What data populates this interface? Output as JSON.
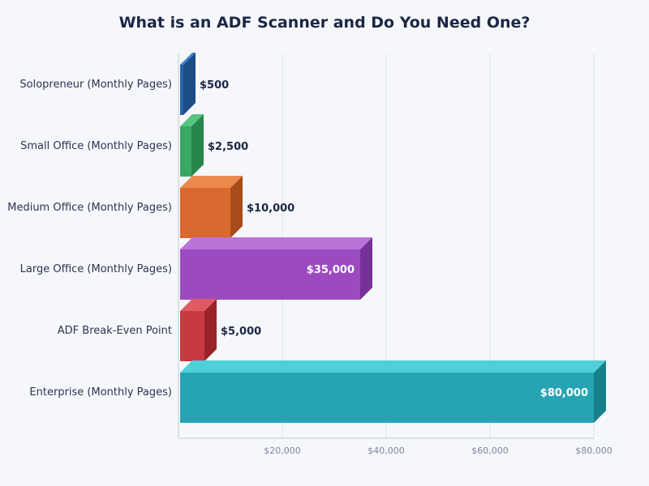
{
  "chart_data": {
    "type": "bar",
    "orientation": "horizontal",
    "title": "What is an ADF Scanner and Do You Need One?",
    "xlabel": "",
    "ylabel": "",
    "categories": [
      "Solopreneur (Monthly Pages)",
      "Small Office (Monthly Pages)",
      "Medium Office (Monthly Pages)",
      "Large Office (Monthly Pages)",
      "ADF Break-Even Point",
      "Enterprise (Monthly Pages)"
    ],
    "values": [
      500,
      2500,
      10000,
      35000,
      5000,
      80000
    ],
    "data_labels": [
      "$500",
      "$2,500",
      "$10,000",
      "$35,000",
      "$5,000",
      "$80,000"
    ],
    "xlim": [
      0,
      80000
    ],
    "xticks": [
      20000,
      40000,
      60000,
      80000
    ],
    "xtick_labels": [
      "$20,000",
      "$40,000",
      "$60,000",
      "$80,000"
    ],
    "grid": true,
    "legend": "none",
    "colors": [
      "#2563a8",
      "#3aa865",
      "#d9692f",
      "#9b4bbf",
      "#c73a40",
      "#27a4b4"
    ],
    "top_colors": [
      "#3d80c8",
      "#55c680",
      "#ec8a4e",
      "#bb72d9",
      "#e05a61",
      "#4fcfd9"
    ],
    "side_colors": [
      "#1a4d85",
      "#27854b",
      "#a94c1b",
      "#76309a",
      "#982329",
      "#17808d"
    ],
    "label_colors": [
      "#1c2745",
      "#1c2745",
      "#1c2745",
      "#ffffff",
      "#1c2745",
      "#ffffff"
    ],
    "label_inside": [
      false,
      false,
      false,
      true,
      false,
      true
    ]
  }
}
